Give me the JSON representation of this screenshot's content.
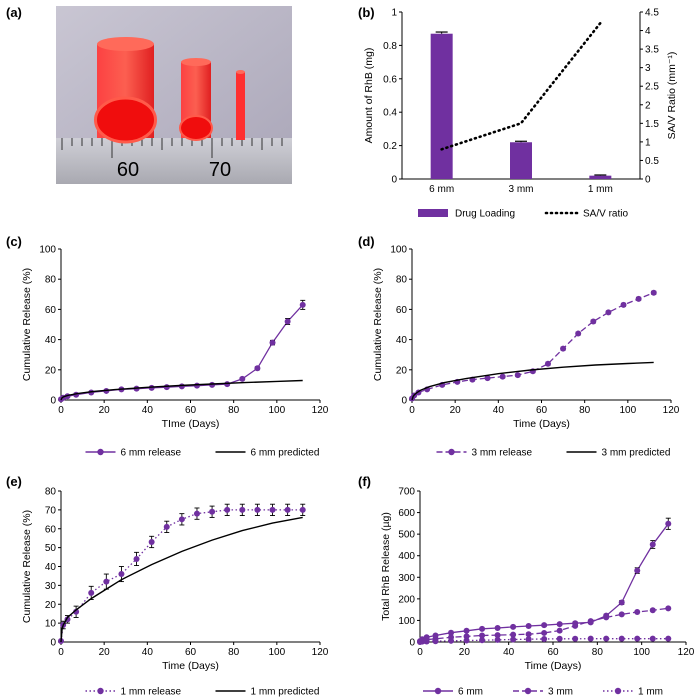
{
  "colors": {
    "purple": "#7030a0",
    "black": "#000000"
  },
  "photo": {
    "label": "(a)",
    "ruler_numbers": [
      "60",
      "70"
    ]
  },
  "chart_data": [
    {
      "id": "b",
      "label": "(b)",
      "type": "bar",
      "categories": [
        "6 mm",
        "3 mm",
        "1 mm"
      ],
      "series": [
        {
          "name": "Drug Loading",
          "values": [
            0.87,
            0.22,
            0.02
          ],
          "errors": [
            0.01,
            0.006,
            0.004
          ],
          "axis": "left"
        },
        {
          "name": "SA/V ratio",
          "values": [
            0.8,
            1.5,
            4.2
          ],
          "axis": "right",
          "style": "dotted-line"
        }
      ],
      "ylabel": "Amount of RhB (mg)",
      "ylim": [
        0,
        1
      ],
      "yticks": [
        "0",
        "0.2",
        "0.4",
        "0.6",
        "0.8",
        "1"
      ],
      "y2label": "SA/V Ratio (mm⁻¹)",
      "y2lim": [
        0,
        4.5
      ],
      "y2ticks": [
        "0",
        "0.5",
        "1",
        "1.5",
        "2",
        "2.5",
        "3",
        "3.5",
        "4",
        "4.5"
      ],
      "legend": [
        "Drug Loading",
        "SA/V ratio"
      ]
    },
    {
      "id": "c",
      "label": "(c)",
      "type": "line",
      "xlabel": "TIme (Days)",
      "ylabel": "Cumulative Release (%)",
      "xlim": [
        0,
        120
      ],
      "ylim": [
        0,
        100
      ],
      "xticks": [
        "0",
        "20",
        "40",
        "60",
        "80",
        "100",
        "120"
      ],
      "yticks": [
        "0",
        "20",
        "40",
        "60",
        "80",
        "100"
      ],
      "series": [
        {
          "name": "6 mm release",
          "x": [
            0,
            1,
            3,
            7,
            14,
            21,
            28,
            35,
            42,
            49,
            56,
            63,
            70,
            77,
            84,
            91,
            98,
            105,
            112
          ],
          "y": [
            0.5,
            1.5,
            2.5,
            3.5,
            5,
            6,
            7,
            7.5,
            8,
            8.5,
            9,
            9.5,
            10,
            10.5,
            14,
            21,
            38,
            52,
            63
          ],
          "err": [
            0.3,
            0.3,
            0.4,
            0.4,
            0.5,
            0.5,
            0.5,
            0.5,
            0.5,
            0.5,
            0.6,
            0.6,
            0.6,
            0.7,
            0.8,
            1,
            1.5,
            2,
            3
          ],
          "style": "solid-markers"
        },
        {
          "name": "6 mm predicted",
          "x": [
            0,
            0.5,
            1,
            2,
            4,
            8,
            15,
            25,
            40,
            55,
            70,
            85,
            100,
            112
          ],
          "y": [
            0,
            1.5,
            2,
            2.5,
            3.3,
            4.4,
            5.6,
            6.9,
            8.4,
            9.6,
            10.6,
            11.5,
            12.3,
            12.9
          ],
          "style": "solid"
        }
      ],
      "legend": [
        "6 mm release",
        "6 mm predicted"
      ]
    },
    {
      "id": "d",
      "label": "(d)",
      "type": "line",
      "xlabel": "Time (Days)",
      "ylabel": "Cumulative Release (%)",
      "xlim": [
        0,
        120
      ],
      "ylim": [
        0,
        100
      ],
      "xticks": [
        "0",
        "20",
        "40",
        "60",
        "80",
        "100",
        "120"
      ],
      "yticks": [
        "0",
        "20",
        "40",
        "60",
        "80",
        "100"
      ],
      "series": [
        {
          "name": "3 mm release",
          "x": [
            0,
            1,
            3,
            7,
            14,
            21,
            28,
            35,
            42,
            49,
            56,
            63,
            70,
            77,
            84,
            91,
            98,
            105,
            112
          ],
          "y": [
            1,
            3,
            5,
            7,
            10,
            12,
            13.5,
            14.5,
            15.5,
            16.5,
            19,
            24,
            34,
            44,
            52,
            58,
            63,
            67,
            71
          ],
          "err": [
            0.5,
            0.5,
            0.6,
            0.6,
            0.7,
            0.7,
            0.8,
            0.8,
            0.8,
            0.8,
            0.9,
            1,
            1,
            1,
            1,
            1,
            1,
            1,
            1
          ],
          "style": "dashed-markers"
        },
        {
          "name": "3 mm predicted",
          "x": [
            0,
            0.5,
            1,
            2,
            4,
            8,
            15,
            25,
            40,
            55,
            70,
            85,
            100,
            112
          ],
          "y": [
            0,
            2.3,
            3.3,
            4.6,
            6.5,
            8.8,
            11.5,
            14.2,
            17.4,
            19.9,
            21.7,
            23.2,
            24.2,
            24.9
          ],
          "style": "solid"
        }
      ],
      "legend": [
        "3 mm release",
        "3 mm predicted"
      ]
    },
    {
      "id": "e",
      "label": "(e)",
      "type": "line",
      "xlabel": "Time (Days)",
      "ylabel": "Cumulative Release (%)",
      "xlim": [
        0,
        120
      ],
      "ylim": [
        0,
        80
      ],
      "xticks": [
        "0",
        "20",
        "40",
        "60",
        "80",
        "100",
        "120"
      ],
      "yticks": [
        "0",
        "10",
        "20",
        "30",
        "40",
        "50",
        "60",
        "70",
        "80"
      ],
      "series": [
        {
          "name": "1 mm release",
          "x": [
            0,
            1,
            3,
            7,
            14,
            21,
            28,
            35,
            42,
            49,
            56,
            63,
            70,
            77,
            84,
            91,
            98,
            105,
            112
          ],
          "y": [
            0.5,
            9,
            12,
            16,
            26,
            32,
            36,
            44,
            53,
            61,
            65,
            68,
            69,
            70,
            70,
            70,
            70,
            70,
            70
          ],
          "err": [
            0.5,
            2,
            2,
            3,
            3.5,
            4,
            4,
            3.5,
            3,
            3,
            3,
            3,
            3,
            3,
            3,
            3,
            3,
            3,
            3
          ],
          "style": "dotted-markers"
        },
        {
          "name": "1 mm predicted",
          "x": [
            0,
            0.5,
            1,
            3,
            7,
            14,
            21,
            28,
            42,
            56,
            70,
            84,
            98,
            112
          ],
          "y": [
            0,
            7,
            9,
            13,
            17,
            23,
            28,
            33,
            41,
            48,
            54,
            59,
            63,
            66
          ],
          "style": "solid"
        }
      ],
      "legend": [
        "1 mm release",
        "1 mm predicted"
      ]
    },
    {
      "id": "f",
      "label": "(f)",
      "type": "line",
      "xlabel": "Time (Days)",
      "ylabel": "Total RhB Release (µg)",
      "xlim": [
        0,
        120
      ],
      "ylim": [
        0,
        700
      ],
      "xticks": [
        "0",
        "20",
        "40",
        "60",
        "80",
        "100",
        "120"
      ],
      "yticks": [
        "0",
        "100",
        "200",
        "300",
        "400",
        "500",
        "600",
        "700"
      ],
      "series": [
        {
          "name": "6 mm",
          "x": [
            0,
            1,
            3,
            7,
            14,
            21,
            28,
            35,
            42,
            49,
            56,
            63,
            70,
            77,
            84,
            91,
            98,
            105,
            112
          ],
          "y": [
            4,
            13,
            22,
            30,
            43,
            52,
            61,
            65,
            70,
            74,
            78,
            83,
            87,
            91,
            122,
            183,
            331,
            452,
            548
          ],
          "err": [
            2,
            2,
            3,
            3,
            4,
            4,
            4,
            4,
            5,
            5,
            5,
            5,
            5,
            6,
            7,
            9,
            13,
            18,
            26
          ],
          "style": "solid-markers"
        },
        {
          "name": "3 mm",
          "x": [
            0,
            1,
            3,
            7,
            14,
            21,
            28,
            35,
            42,
            49,
            56,
            63,
            70,
            77,
            84,
            91,
            98,
            105,
            112
          ],
          "y": [
            2,
            7,
            11,
            15,
            22,
            26,
            30,
            32,
            34,
            36,
            42,
            53,
            75,
            97,
            114,
            128,
            139,
            147,
            156
          ],
          "err": [
            1,
            1,
            1,
            1,
            2,
            2,
            2,
            2,
            2,
            2,
            2,
            2,
            2,
            3,
            3,
            3,
            3,
            3,
            3
          ],
          "style": "dashed-markers"
        },
        {
          "name": "1 mm",
          "x": [
            0,
            1,
            3,
            7,
            14,
            21,
            28,
            35,
            42,
            49,
            56,
            63,
            70,
            77,
            84,
            91,
            98,
            105,
            112
          ],
          "y": [
            0,
            2,
            2.5,
            3.5,
            5.5,
            7,
            8,
            10,
            11.5,
            13,
            14,
            15,
            15,
            15.5,
            15.5,
            15.5,
            15.5,
            15.5,
            15.5
          ],
          "err": [
            0.5,
            0.5,
            0.5,
            1,
            1,
            1,
            1,
            1,
            1,
            1,
            1,
            1,
            1,
            1,
            1,
            1,
            1,
            1,
            1
          ],
          "style": "dotted-markers"
        }
      ],
      "legend": [
        "6 mm",
        "3 mm",
        "1 mm"
      ]
    }
  ]
}
